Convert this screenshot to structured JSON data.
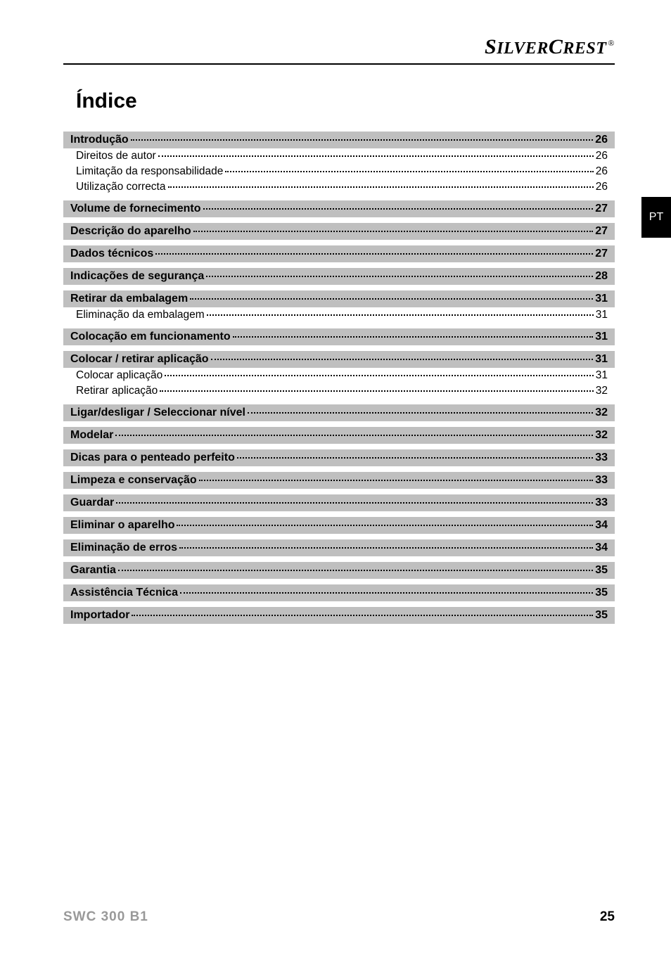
{
  "brand": {
    "name_part1": "S",
    "name_part2": "ILVER",
    "name_part3": "C",
    "name_part4": "REST",
    "reg": "®"
  },
  "title": "Índice",
  "side_tab": "PT",
  "footer": {
    "model": "SWC 300 B1",
    "page": "25"
  },
  "toc": [
    {
      "label": "Introdução",
      "page": "26",
      "subs": [
        {
          "label": "Direitos de autor",
          "page": "26"
        },
        {
          "label": "Limitação da responsabilidade",
          "page": "26"
        },
        {
          "label": "Utilização correcta",
          "page": "26"
        }
      ]
    },
    {
      "label": "Volume de fornecimento",
      "page": "27",
      "subs": []
    },
    {
      "label": "Descrição do aparelho",
      "page": "27",
      "subs": []
    },
    {
      "label": "Dados técnicos",
      "page": "27",
      "subs": []
    },
    {
      "label": "Indicações de segurança",
      "page": "28",
      "subs": []
    },
    {
      "label": "Retirar da embalagem",
      "page": "31",
      "subs": [
        {
          "label": "Eliminação da embalagem",
          "page": "31"
        }
      ]
    },
    {
      "label": "Colocação em funcionamento",
      "page": "31",
      "subs": []
    },
    {
      "label": "Colocar / retirar aplicação",
      "page": "31",
      "subs": [
        {
          "label": "Colocar aplicação",
          "page": "31"
        },
        {
          "label": "Retirar aplicação",
          "page": "32"
        }
      ]
    },
    {
      "label": "Ligar/desligar / Seleccionar nível",
      "page": "32",
      "subs": []
    },
    {
      "label": "Modelar",
      "page": "32",
      "subs": []
    },
    {
      "label": "Dicas para o penteado perfeito",
      "page": "33",
      "subs": []
    },
    {
      "label": "Limpeza e conservação",
      "page": "33",
      "subs": []
    },
    {
      "label": "Guardar",
      "page": "33",
      "subs": []
    },
    {
      "label": "Eliminar o aparelho",
      "page": "34",
      "subs": []
    },
    {
      "label": "Eliminação de erros",
      "page": "34",
      "subs": []
    },
    {
      "label": "Garantia",
      "page": "35",
      "subs": []
    },
    {
      "label": "Assistência Técnica",
      "page": "35",
      "subs": []
    },
    {
      "label": "Importador",
      "page": "35",
      "subs": []
    }
  ]
}
